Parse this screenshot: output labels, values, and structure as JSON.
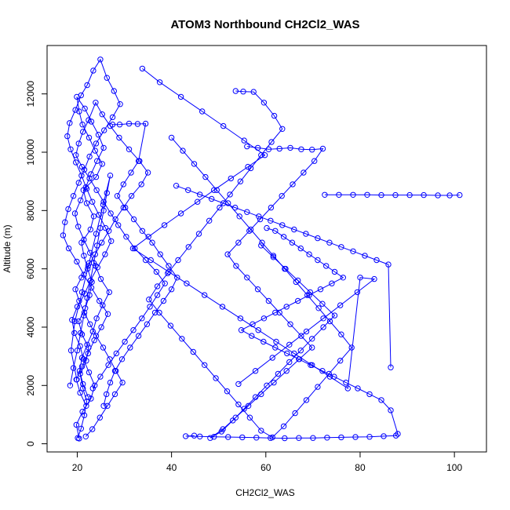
{
  "chart_data": {
    "type": "scatter",
    "title": "ATOM3 Northbound CH2Cl2_WAS",
    "xlabel": "CH2Cl2_WAS",
    "ylabel": "Altitude (m)",
    "xlim": [
      13.6,
      106.8
    ],
    "ylim": [
      -280,
      13660
    ],
    "xticks": [
      20,
      40,
      60,
      80,
      100
    ],
    "yticks": [
      0,
      2000,
      4000,
      6000,
      8000,
      10000,
      12000
    ],
    "grid": false,
    "color": "#0000ff",
    "marker": "open-circle",
    "connected": true,
    "series": [
      {
        "x": [
          20.1,
          20.8,
          21.5,
          22.0,
          21.2,
          20.6,
          21.9,
          22.4,
          21.0,
          20.3,
          21.7,
          22.6,
          23.1,
          22.2,
          21.4,
          20.9,
          22.8,
          23.5,
          22.0,
          21.3,
          24.0,
          25.3,
          23.8,
          22.5,
          21.1,
          20.4,
          19.9,
          21.6,
          23.0,
          24.5,
          25.6,
          24.2,
          22.9,
          21.8,
          20.7,
          19.5,
          20.2,
          21.4,
          22.7,
          23.9,
          25.0,
          26.8,
          25.4,
          24.1,
          23.3,
          22.1,
          21.0,
          20.5,
          21.2,
          22.3
        ],
        "y": [
          200,
          520,
          980,
          1450,
          1900,
          2400,
          2850,
          3300,
          3750,
          4200,
          4650,
          5100,
          5550,
          6000,
          6450,
          6900,
          7350,
          7800,
          8250,
          8700,
          9150,
          9600,
          10050,
          10500,
          10950,
          11400,
          11900,
          11500,
          11050,
          10600,
          10150,
          9700,
          9250,
          8800,
          8350,
          7900,
          7450,
          7000,
          6550,
          6100,
          5650,
          5200,
          4750,
          4300,
          3850,
          3400,
          2950,
          2500,
          2050,
          1600
        ]
      },
      {
        "x": [
          20.4,
          19.8,
          21.1,
          22.9,
          23.7,
          22.5,
          21.3,
          20.6,
          19.4,
          18.9,
          20.0,
          21.6,
          22.8,
          24.3,
          25.9,
          27.2,
          26.0,
          24.6,
          23.2,
          22.0,
          20.9,
          19.7,
          18.6,
          17.9,
          18.4,
          19.6,
          20.8,
          22.1,
          23.4,
          24.9,
          26.3,
          27.8,
          29.1,
          27.5,
          25.7,
          24.0,
          22.6,
          21.5,
          20.3,
          19.2,
          18.1,
          17.4,
          17.0,
          18.2,
          19.9,
          21.4,
          23.0,
          24.7,
          26.5,
          25.1,
          23.6,
          22.3,
          21.0,
          19.8,
          20.6,
          21.9
        ],
        "y": [
          180,
          650,
          1100,
          1550,
          2000,
          2450,
          2900,
          3350,
          3800,
          4250,
          4700,
          5150,
          5600,
          6050,
          6500,
          6950,
          7400,
          7850,
          8300,
          8750,
          9200,
          9650,
          10100,
          10550,
          11000,
          11450,
          11950,
          12300,
          12800,
          13180,
          12550,
          12100,
          11650,
          11200,
          10750,
          10300,
          9850,
          9400,
          8950,
          8500,
          8050,
          7600,
          7150,
          6700,
          6250,
          5800,
          5350,
          4900,
          4450,
          4000,
          3550,
          3100,
          2650,
          2200,
          1750,
          1300
        ]
      },
      {
        "x": [
          21.8,
          23.2,
          24.8,
          26.4,
          28.0,
          29.6,
          28.2,
          26.9,
          25.5,
          24.0,
          22.7,
          21.5,
          20.4,
          19.6,
          20.9,
          22.3,
          23.8,
          25.2,
          26.7,
          28.1,
          29.8,
          31.5,
          33.6,
          35.0,
          33.2,
          31.0,
          28.9,
          27.0,
          25.3,
          23.9,
          22.4,
          21.2,
          20.3,
          19.7,
          21.0,
          22.6,
          24.1,
          25.6,
          27.1,
          28.7,
          30.4,
          32.2,
          34.5,
          36.8,
          38.6,
          37.0,
          35.4,
          33.7,
          31.9,
          30.1,
          28.3,
          26.6,
          24.9,
          23.3
        ],
        "y": [
          250,
          500,
          900,
          1300,
          1700,
          2100,
          2500,
          2900,
          3300,
          3700,
          4100,
          4500,
          4900,
          5300,
          5700,
          6100,
          6500,
          6900,
          7300,
          7700,
          8100,
          8500,
          8900,
          9300,
          9700,
          10100,
          10500,
          10900,
          11300,
          11700,
          11100,
          10700,
          10300,
          9900,
          9500,
          9100,
          8700,
          8300,
          7900,
          7500,
          7100,
          6700,
          6300,
          5900,
          5500,
          5100,
          4700,
          4300,
          3900,
          3500,
          3100,
          2700,
          2300,
          1900
        ]
      },
      {
        "x": [
          27.5,
          29.0,
          31.0,
          32.8,
          34.5,
          33.0,
          31.4,
          29.8,
          28.5,
          30.2,
          32.0,
          33.8,
          35.9,
          37.6,
          39.4,
          41.2,
          40.0,
          38.3,
          36.5,
          34.8,
          33.0,
          31.2,
          29.5,
          28.0,
          27.0,
          26.2,
          25.6
        ],
        "y": [
          10950,
          10950,
          10980,
          10970,
          10980,
          9700,
          9300,
          8900,
          8500,
          8100,
          7700,
          7300,
          6900,
          6500,
          6100,
          5700,
          5300,
          4900,
          4500,
          4100,
          3700,
          3300,
          2900,
          2500,
          2100,
          1700,
          1300
        ]
      },
      {
        "x": [
          33.8,
          37.5,
          42.0,
          46.5,
          51.0,
          55.4,
          59.8,
          56.2,
          52.6,
          49.0,
          45.5,
          42.0,
          38.5,
          35.1,
          31.8,
          35.6,
          39.4,
          43.2,
          47.0,
          50.8,
          54.6,
          58.4,
          62.2,
          66.0,
          69.8,
          73.6,
          77.4,
          80.0,
          83.0,
          79.4,
          75.8,
          72.2,
          68.6,
          65.0,
          61.4,
          57.8,
          54.2
        ],
        "y": [
          12870,
          12400,
          11900,
          11400,
          10900,
          10400,
          9900,
          9500,
          9100,
          8700,
          8300,
          7900,
          7500,
          7100,
          6700,
          6300,
          5900,
          5500,
          5100,
          4700,
          4300,
          3900,
          3500,
          3100,
          2700,
          2300,
          1900,
          5700,
          5650,
          5200,
          4750,
          4300,
          3850,
          3400,
          2950,
          2500,
          2050
        ]
      },
      {
        "x": [
          72.5,
          75.5,
          78.5,
          81.5,
          84.5,
          87.5,
          90.5,
          93.5,
          96.5,
          99.0,
          101.1
        ],
        "y": [
          8540,
          8540,
          8540,
          8540,
          8530,
          8530,
          8530,
          8530,
          8520,
          8520,
          8530
        ]
      },
      {
        "x": [
          53.6,
          55.2,
          57.4,
          59.6,
          61.8,
          63.5,
          61.2,
          59.0,
          56.8,
          54.6,
          52.4,
          50.2,
          48.0,
          45.8,
          43.6,
          41.4,
          39.2,
          37.0,
          35.2,
          37.4,
          39.8,
          42.2,
          44.6,
          47.0,
          49.4,
          51.8,
          54.2,
          56.6,
          59.0,
          61.4,
          63.8,
          66.2,
          68.6,
          71.0,
          73.4,
          75.8,
          78.2,
          76.0,
          73.6,
          71.2,
          68.8,
          66.4,
          64.0,
          61.6,
          59.2,
          56.8,
          54.4,
          52.0,
          49.6,
          47.2,
          44.8,
          42.4,
          40.0
        ],
        "y": [
          12100,
          12080,
          12070,
          11700,
          11250,
          10800,
          10350,
          9900,
          9450,
          9000,
          8550,
          8100,
          7650,
          7200,
          6750,
          6300,
          5850,
          5400,
          4950,
          4500,
          4050,
          3600,
          3150,
          2700,
          2250,
          1800,
          1350,
          900,
          450,
          220,
          600,
          1050,
          1500,
          1950,
          2400,
          2850,
          3300,
          3750,
          4200,
          4650,
          5100,
          5550,
          6000,
          6450,
          6900,
          7350,
          7800,
          8250,
          8700,
          9150,
          9600,
          10050,
          10500
        ]
      },
      {
        "x": [
          56.0,
          58.3,
          60.6,
          62.9,
          65.2,
          67.5,
          69.8,
          72.1,
          70.3,
          68.0,
          65.7,
          63.4,
          61.1,
          58.8,
          56.5,
          54.2,
          51.9,
          53.7,
          56.0,
          58.3,
          60.6,
          62.9,
          65.2,
          67.5,
          69.8,
          67.1,
          64.4,
          61.7,
          59.0,
          56.3,
          53.6,
          50.9,
          48.2,
          50.6,
          53.0,
          55.4,
          57.8,
          60.2,
          62.6,
          65.0,
          67.4,
          69.8,
          72.2,
          74.6,
          72.0,
          69.4,
          66.8,
          64.2,
          61.6,
          59.0
        ],
        "y": [
          10200,
          10150,
          10100,
          10120,
          10150,
          10100,
          10090,
          10120,
          9700,
          9300,
          8900,
          8500,
          8100,
          7700,
          7300,
          6900,
          6500,
          6100,
          5700,
          5300,
          4900,
          4500,
          4100,
          3700,
          3300,
          2900,
          2500,
          2100,
          1700,
          1300,
          900,
          500,
          200,
          420,
          800,
          1200,
          1600,
          2000,
          2400,
          2800,
          3200,
          3600,
          4000,
          4400,
          4800,
          5200,
          5600,
          6000,
          6400,
          6800
        ]
      },
      {
        "x": [
          60.2,
          62.0,
          63.8,
          65.6,
          67.4,
          69.2,
          71.0,
          72.8,
          74.6,
          76.4,
          74.0,
          71.6,
          69.2,
          66.8,
          64.4,
          62.0,
          59.6,
          57.2,
          54.8,
          57.0,
          59.5,
          62.0,
          64.5,
          67.0,
          69.5,
          72.0,
          74.5,
          77.0,
          79.5,
          82.0,
          84.5,
          86.5,
          88.0,
          87.6,
          85.0,
          82.0,
          79.0,
          76.0,
          73.0,
          70.0,
          67.0,
          64.0,
          61.0,
          58.0,
          55.0,
          52.0,
          49.0,
          46.0,
          43.0,
          44.8
        ],
        "y": [
          7400,
          7300,
          7100,
          6900,
          6700,
          6500,
          6300,
          6100,
          5900,
          5700,
          5500,
          5300,
          5100,
          4900,
          4700,
          4500,
          4300,
          4100,
          3900,
          3700,
          3500,
          3300,
          3100,
          2900,
          2700,
          2500,
          2300,
          2100,
          1900,
          1700,
          1500,
          1150,
          340,
          280,
          260,
          240,
          230,
          220,
          210,
          200,
          200,
          190,
          200,
          210,
          220,
          230,
          240,
          250,
          260,
          280
        ]
      },
      {
        "x": [
          18.5,
          19.2,
          20.0,
          20.7,
          21.4,
          22.1,
          22.8,
          23.5,
          24.2,
          24.9,
          25.6,
          26.3,
          27.0,
          25.5,
          24.0,
          22.5,
          21.0,
          19.5,
          18.7,
          19.9
        ],
        "y": [
          2000,
          2600,
          3200,
          3800,
          4400,
          5000,
          5600,
          6200,
          6800,
          7400,
          8000,
          8600,
          9200,
          8200,
          7200,
          6200,
          5200,
          4200,
          3200,
          2200
        ]
      },
      {
        "x": [
          41.0,
          43.5,
          46.0,
          48.5,
          51.0,
          53.5,
          56.0,
          58.5,
          61.0,
          63.5,
          66.0,
          68.5,
          71.0,
          73.5,
          76.0,
          78.5,
          81.0,
          83.5,
          86.0,
          86.5
        ],
        "y": [
          8850,
          8700,
          8550,
          8400,
          8250,
          8100,
          7950,
          7800,
          7650,
          7500,
          7350,
          7200,
          7050,
          6900,
          6750,
          6600,
          6450,
          6300,
          6150,
          2620
        ]
      }
    ]
  }
}
